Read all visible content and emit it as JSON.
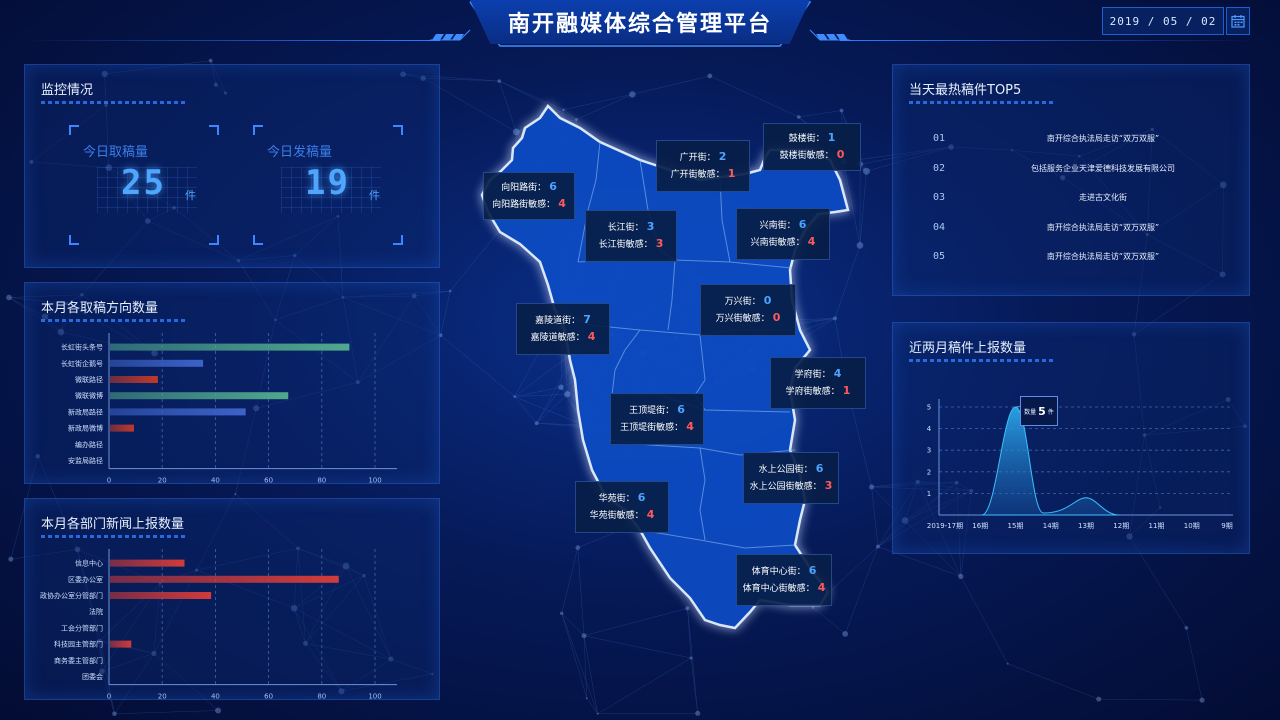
{
  "header": {
    "title": "南开融媒体综合管理平台",
    "date": "2019 / 05 / 02",
    "calendar_icon": "calendar-icon"
  },
  "monitor": {
    "title": "监控情况",
    "today_take": {
      "label": "今日取稿量",
      "value": "25",
      "unit": "件"
    },
    "today_send": {
      "label": "今日发稿量",
      "value": "19",
      "unit": "件"
    }
  },
  "direction_chart": {
    "title": "本月各取稿方向数量",
    "chart_data": {
      "type": "bar",
      "orientation": "horizontal",
      "categories": [
        "长虹街头条号",
        "长虹街企鹅号",
        "微联路径",
        "微联微博",
        "新政局路径",
        "新政局微博",
        "编办路径",
        "安监局路径"
      ],
      "values": [
        90,
        35,
        18,
        67,
        51,
        9,
        0,
        0
      ],
      "colors": [
        "#4fa98c",
        "#3d63c9",
        "#c0392b",
        "#4fa98c",
        "#3d63c9",
        "#c0392b",
        "#4fa98c",
        "#3d63c9"
      ],
      "xticks": [
        "0",
        "20",
        "40",
        "60",
        "80",
        "100"
      ],
      "xlim": [
        0,
        100
      ],
      "grid": true
    }
  },
  "dept_chart": {
    "title": "本月各部门新闻上报数量",
    "chart_data": {
      "type": "bar",
      "orientation": "horizontal",
      "categories": [
        "信息中心",
        "区委办公室",
        "政协办公室分管部门",
        "法院",
        "工会分管部门",
        "科技园主管部门",
        "商务委主管部门",
        "团委会"
      ],
      "values": [
        28,
        86,
        38,
        0,
        0,
        8,
        0,
        0
      ],
      "colors": [
        "#d13b3b",
        "#d13b3b",
        "#d13b3b",
        "#d13b3b",
        "#d13b3b",
        "#d13b3b",
        "#d13b3b",
        "#d13b3b"
      ],
      "xticks": [
        "0",
        "20",
        "40",
        "60",
        "80",
        "100"
      ],
      "xlim": [
        0,
        100
      ],
      "grid": true
    }
  },
  "top5": {
    "title": "当天最热稿件TOP5",
    "items": [
      {
        "rank": "01",
        "text": "南开综合执法局走访“双万双服”"
      },
      {
        "rank": "02",
        "text": "包括服务企业天津爱德科技发展有限公司"
      },
      {
        "rank": "03",
        "text": "走进古文化街"
      },
      {
        "rank": "04",
        "text": "南开综合执法局走访“双万双服”"
      },
      {
        "rank": "05",
        "text": "南开综合执法局走访“双万双服”"
      }
    ]
  },
  "report_chart": {
    "title": "近两月稿件上报数量",
    "chart_data": {
      "type": "area",
      "x": [
        "2019-17期",
        "16期",
        "15期",
        "14期",
        "13期",
        "12期",
        "11期",
        "10期",
        "9期"
      ],
      "yticks": [
        "1",
        "2",
        "3",
        "4",
        "5"
      ],
      "ylim": [
        0,
        5
      ],
      "peaks": [
        {
          "x": "15期",
          "value": 5
        },
        {
          "x": "13期",
          "value": 0.8
        }
      ],
      "tooltip": {
        "label": "数量",
        "value": "5",
        "unit": "件"
      }
    }
  },
  "map": {
    "labels": [
      {
        "name": "向阳路街",
        "value": "6",
        "sens_label": "向阳路街敏感",
        "sens": "4"
      },
      {
        "name": "广开街",
        "value": "2",
        "sens_label": "广开街敏感",
        "sens": "1"
      },
      {
        "name": "鼓楼街",
        "value": "1",
        "sens_label": "鼓楼街敏感",
        "sens": "0"
      },
      {
        "name": "长江街",
        "value": "3",
        "sens_label": "长江街敏感",
        "sens": "3"
      },
      {
        "name": "兴南街",
        "value": "6",
        "sens_label": "兴南街敏感",
        "sens": "4"
      },
      {
        "name": "万兴街",
        "value": "0",
        "sens_label": "万兴街敏感",
        "sens": "0"
      },
      {
        "name": "嘉陵道街",
        "value": "7",
        "sens_label": "嘉陵道敏感",
        "sens": "4"
      },
      {
        "name": "学府街",
        "value": "4",
        "sens_label": "学府街敏感",
        "sens": "1"
      },
      {
        "name": "王顶堤街",
        "value": "6",
        "sens_label": "王顶堤街敏感",
        "sens": "4"
      },
      {
        "name": "水上公园街",
        "value": "6",
        "sens_label": "水上公园街敏感",
        "sens": "3"
      },
      {
        "name": "华苑街",
        "value": "6",
        "sens_label": "华苑街敏感",
        "sens": "4"
      },
      {
        "name": "体育中心街",
        "value": "6",
        "sens_label": "体育中心街敏感",
        "sens": "4"
      }
    ]
  }
}
